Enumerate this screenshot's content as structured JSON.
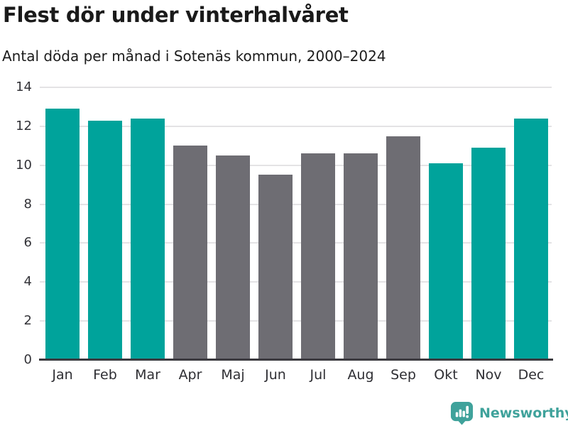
{
  "chart_data": {
    "type": "bar",
    "title": "Flest dör under vinterhalvåret",
    "subtitle": "Antal döda per månad i Sotenäs kommun, 2000–2024",
    "categories": [
      "Jan",
      "Feb",
      "Mar",
      "Apr",
      "Maj",
      "Jun",
      "Jul",
      "Aug",
      "Sep",
      "Okt",
      "Nov",
      "Dec"
    ],
    "values": [
      12.9,
      12.3,
      12.4,
      11.0,
      10.5,
      9.5,
      10.6,
      10.6,
      11.5,
      10.1,
      10.9,
      12.4
    ],
    "highlighted_winter_months": [
      true,
      true,
      true,
      false,
      false,
      false,
      false,
      false,
      false,
      true,
      true,
      true
    ],
    "bar_color_highlight": "#00a39b",
    "bar_color_normal": "#6e6d73",
    "xlabel": "",
    "ylabel": "",
    "ylim": [
      0,
      14
    ],
    "yticks": [
      0,
      2,
      4,
      6,
      8,
      10,
      12,
      14
    ],
    "grid": true,
    "legend": "none"
  },
  "footer": {
    "brand": "Newsworthy",
    "logo_color": "#3fa29b"
  }
}
